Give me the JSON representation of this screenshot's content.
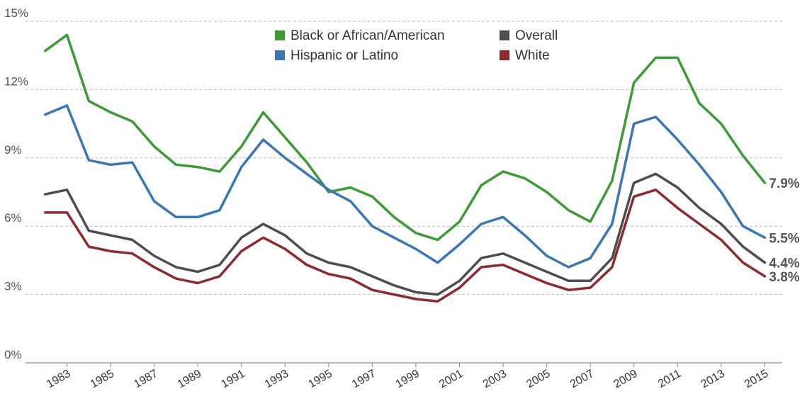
{
  "chart_data": {
    "type": "line",
    "title": "",
    "xlabel": "",
    "ylabel": "",
    "x": [
      1982,
      1983,
      1984,
      1985,
      1986,
      1987,
      1988,
      1989,
      1990,
      1991,
      1992,
      1993,
      1994,
      1995,
      1996,
      1997,
      1998,
      1999,
      2000,
      2001,
      2002,
      2003,
      2004,
      2005,
      2006,
      2007,
      2008,
      2009,
      2010,
      2011,
      2012,
      2013,
      2014,
      2015
    ],
    "xticks": [
      "1983",
      "1985",
      "1987",
      "1989",
      "1991",
      "1993",
      "1995",
      "1997",
      "1999",
      "2001",
      "2003",
      "2005",
      "2007",
      "2009",
      "2011",
      "2013",
      "2015"
    ],
    "ylim": [
      0,
      15
    ],
    "yticks": [
      {
        "value": 0,
        "label": "0%"
      },
      {
        "value": 3,
        "label": "3%"
      },
      {
        "value": 6,
        "label": "6%"
      },
      {
        "value": 9,
        "label": "9%"
      },
      {
        "value": 12,
        "label": "12%"
      },
      {
        "value": 15,
        "label": "15%"
      }
    ],
    "grid": true,
    "legend": "top-center",
    "series": [
      {
        "name": "Black or African/American",
        "color": "#3d9b35",
        "values": [
          13.7,
          14.4,
          11.5,
          11.0,
          10.6,
          9.5,
          8.7,
          8.6,
          8.4,
          9.5,
          11.0,
          9.9,
          8.8,
          7.5,
          7.7,
          7.3,
          6.4,
          5.7,
          5.4,
          6.2,
          7.8,
          8.4,
          8.1,
          7.5,
          6.7,
          6.2,
          8.0,
          12.3,
          13.4,
          13.4,
          11.4,
          10.5,
          9.1,
          7.9
        ],
        "end_label": "7.9%"
      },
      {
        "name": "Hispanic or Latino",
        "color": "#3a76b4",
        "values": [
          10.9,
          11.3,
          8.9,
          8.7,
          8.8,
          7.1,
          6.4,
          6.4,
          6.7,
          8.6,
          9.8,
          9.0,
          8.3,
          7.6,
          7.1,
          6.0,
          5.5,
          5.0,
          4.4,
          5.2,
          6.1,
          6.4,
          5.6,
          4.7,
          4.2,
          4.6,
          6.1,
          10.5,
          10.8,
          9.8,
          8.7,
          7.5,
          6.0,
          5.5
        ],
        "end_label": "5.5%"
      },
      {
        "name": "Overall",
        "color": "#4d4d4d",
        "values": [
          7.4,
          7.6,
          5.8,
          5.6,
          5.4,
          4.7,
          4.2,
          4.0,
          4.3,
          5.5,
          6.1,
          5.6,
          4.8,
          4.4,
          4.2,
          3.8,
          3.4,
          3.1,
          3.0,
          3.6,
          4.6,
          4.8,
          4.4,
          4.0,
          3.6,
          3.6,
          4.6,
          7.9,
          8.3,
          7.7,
          6.8,
          6.1,
          5.1,
          4.4
        ],
        "end_label": "4.4%"
      },
      {
        "name": "White",
        "color": "#8e2a2e",
        "values": [
          6.6,
          6.6,
          5.1,
          4.9,
          4.8,
          4.2,
          3.7,
          3.5,
          3.8,
          4.9,
          5.5,
          5.0,
          4.3,
          3.9,
          3.7,
          3.2,
          3.0,
          2.8,
          2.7,
          3.3,
          4.2,
          4.3,
          3.9,
          3.5,
          3.2,
          3.3,
          4.2,
          7.3,
          7.6,
          6.8,
          6.1,
          5.4,
          4.4,
          3.8
        ],
        "end_label": "3.8%"
      }
    ]
  }
}
